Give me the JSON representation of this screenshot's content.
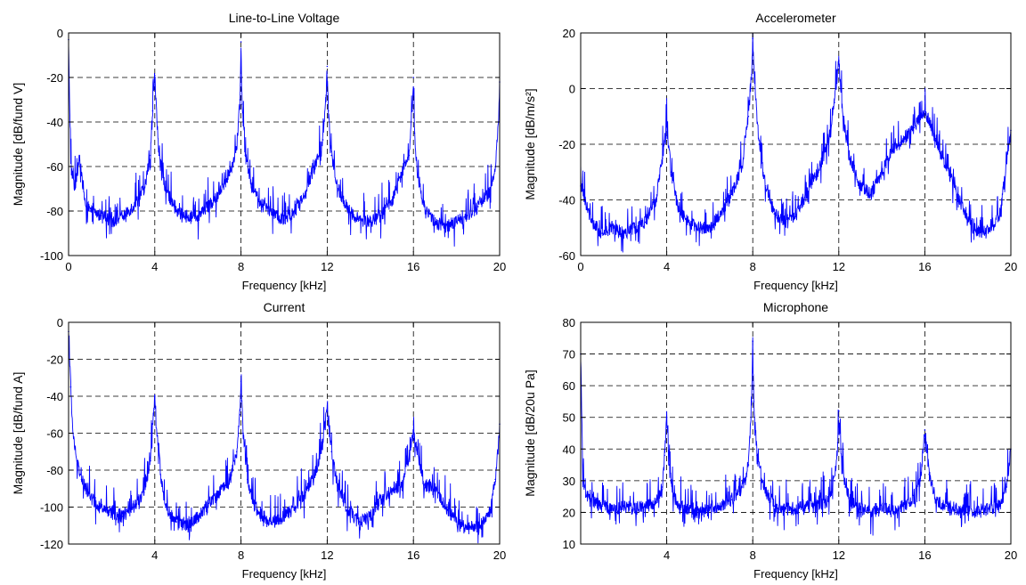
{
  "chart_data": [
    {
      "type": "line",
      "title": "Line-to-Line Voltage",
      "xlabel": "Frequency [kHz]",
      "ylabel": "Magnitude [dB/fund V]",
      "xlim": [
        0,
        20
      ],
      "ylim": [
        -100,
        0
      ],
      "xticks": [
        0,
        4,
        8,
        12,
        16,
        20
      ],
      "yticks": [
        -100,
        -80,
        -60,
        -40,
        -20,
        0
      ],
      "xtick_labels": [
        "0",
        "4",
        "8",
        "12",
        "16",
        "20"
      ],
      "ytick_labels": [
        "-100",
        "-80",
        "-60",
        "-40",
        "-20",
        "0"
      ],
      "grid": true,
      "line_color": "#0000ff",
      "series": [
        {
          "x": [
            0,
            0.1,
            0.3,
            0.5,
            0.75,
            1.0,
            1.5,
            2.0,
            2.5,
            3.0,
            3.5,
            3.8,
            3.9,
            4.0,
            4.1,
            4.2,
            4.5,
            5.0,
            5.5,
            6.0,
            6.5,
            7.0,
            7.5,
            7.8,
            7.95,
            8.0,
            8.05,
            8.2,
            8.5,
            9.0,
            9.5,
            10.0,
            10.5,
            11.0,
            11.5,
            11.8,
            11.95,
            12.0,
            12.05,
            12.2,
            12.5,
            13.0,
            13.5,
            14.0,
            14.5,
            15.0,
            15.5,
            15.8,
            15.95,
            16.0,
            16.05,
            16.2,
            16.5,
            17.0,
            17.5,
            18.0,
            18.5,
            19.0,
            19.5,
            19.8,
            19.95,
            20.0
          ],
          "y": [
            -3,
            -60,
            -70,
            -55,
            -75,
            -80,
            -82,
            -85,
            -82,
            -78,
            -70,
            -55,
            -35,
            -19,
            -40,
            -55,
            -70,
            -80,
            -83,
            -82,
            -78,
            -72,
            -62,
            -52,
            -30,
            -4,
            -32,
            -55,
            -68,
            -78,
            -82,
            -84,
            -80,
            -72,
            -58,
            -48,
            -28,
            -15,
            -35,
            -55,
            -70,
            -80,
            -84,
            -85,
            -82,
            -75,
            -62,
            -55,
            -35,
            -20,
            -45,
            -65,
            -78,
            -85,
            -87,
            -85,
            -82,
            -78,
            -72,
            -60,
            -40,
            -22
          ]
        }
      ]
    },
    {
      "type": "line",
      "title": "Accelerometer",
      "xlabel": "Frequency [kHz]",
      "ylabel": "Magnitude [dB/m/s²]",
      "xlim": [
        0,
        20
      ],
      "ylim": [
        -60,
        20
      ],
      "xticks": [
        0,
        4,
        8,
        12,
        16,
        20
      ],
      "yticks": [
        -60,
        -40,
        -20,
        0,
        20
      ],
      "xtick_labels": [
        "0",
        "4",
        "8",
        "12",
        "16",
        "20"
      ],
      "ytick_labels": [
        "-60",
        "-40",
        "-20",
        "0",
        "20"
      ],
      "grid": true,
      "line_color": "#0000ff",
      "series": [
        {
          "x": [
            0,
            0.2,
            0.5,
            1.0,
            1.5,
            2.0,
            2.5,
            3.0,
            3.5,
            3.8,
            4.0,
            4.2,
            4.5,
            5.0,
            5.5,
            6.0,
            6.5,
            7.0,
            7.5,
            7.8,
            7.95,
            8.0,
            8.1,
            8.3,
            8.6,
            9.0,
            9.5,
            10.0,
            10.5,
            11.0,
            11.5,
            11.8,
            12.0,
            12.2,
            12.5,
            13.0,
            13.5,
            14.0,
            14.5,
            15.0,
            15.5,
            15.8,
            16.0,
            16.5,
            17.0,
            17.5,
            18.0,
            18.5,
            19.0,
            19.5,
            20.0
          ],
          "y": [
            -35,
            -40,
            -48,
            -52,
            -50,
            -52,
            -50,
            -48,
            -40,
            -25,
            -12,
            -30,
            -42,
            -48,
            -50,
            -50,
            -45,
            -38,
            -28,
            -10,
            5,
            18,
            0,
            -20,
            -35,
            -45,
            -48,
            -45,
            -38,
            -30,
            -20,
            -5,
            10,
            -10,
            -25,
            -35,
            -38,
            -30,
            -22,
            -18,
            -14,
            -10,
            -8,
            -18,
            -28,
            -38,
            -48,
            -52,
            -50,
            -45,
            -15
          ]
        }
      ]
    },
    {
      "type": "line",
      "title": "Current",
      "xlabel": "Frequency [kHz]",
      "ylabel": "Magnitude [dB/fund A]",
      "xlim": [
        0,
        20
      ],
      "ylim": [
        -120,
        0
      ],
      "xticks": [
        4,
        8,
        12,
        16,
        20
      ],
      "yticks": [
        -120,
        -100,
        -80,
        -60,
        -40,
        -20,
        0
      ],
      "xtick_labels": [
        "4",
        "8",
        "12",
        "16",
        "20"
      ],
      "ytick_labels": [
        "-120",
        "-100",
        "-80",
        "-60",
        "-40",
        "-20",
        "0"
      ],
      "grid": true,
      "line_color": "#0000ff",
      "series": [
        {
          "x": [
            0,
            0.1,
            0.2,
            0.4,
            0.6,
            0.8,
            1.0,
            1.5,
            2.0,
            2.5,
            3.0,
            3.5,
            3.8,
            3.9,
            4.0,
            4.1,
            4.3,
            4.5,
            5.0,
            5.5,
            6.0,
            6.5,
            7.0,
            7.5,
            7.8,
            7.95,
            8.0,
            8.1,
            8.3,
            8.6,
            9.0,
            9.5,
            10.0,
            10.5,
            11.0,
            11.5,
            11.8,
            12.0,
            12.2,
            12.5,
            13.0,
            13.5,
            14.0,
            14.5,
            15.0,
            15.5,
            16.0,
            16.5,
            17.0,
            17.5,
            18.0,
            18.5,
            19.0,
            19.5,
            19.8,
            20.0
          ],
          "y": [
            -5,
            -35,
            -60,
            -75,
            -85,
            -90,
            -95,
            -100,
            -103,
            -105,
            -100,
            -92,
            -75,
            -55,
            -40,
            -60,
            -85,
            -100,
            -108,
            -110,
            -105,
            -98,
            -92,
            -85,
            -70,
            -50,
            -32,
            -60,
            -85,
            -98,
            -105,
            -108,
            -105,
            -100,
            -92,
            -80,
            -65,
            -48,
            -70,
            -90,
            -102,
            -108,
            -105,
            -96,
            -90,
            -88,
            -60,
            -88,
            -90,
            -100,
            -108,
            -112,
            -110,
            -105,
            -85,
            -55
          ]
        }
      ]
    },
    {
      "type": "line",
      "title": "Microphone",
      "xlabel": "Frequency [kHz]",
      "ylabel": "Magnitude [dB/20u Pa]",
      "xlim": [
        0,
        20
      ],
      "ylim": [
        10,
        80
      ],
      "xticks": [
        4,
        8,
        12,
        16,
        20
      ],
      "yticks": [
        10,
        20,
        30,
        40,
        50,
        60,
        70,
        80
      ],
      "xtick_labels": [
        "4",
        "8",
        "12",
        "16",
        "20"
      ],
      "ytick_labels": [
        "10",
        "20",
        "30",
        "40",
        "50",
        "60",
        "70",
        "80"
      ],
      "grid": true,
      "line_color": "#0000ff",
      "series": [
        {
          "x": [
            0,
            0.1,
            0.3,
            0.6,
            1.0,
            1.5,
            2.0,
            2.5,
            3.0,
            3.5,
            3.8,
            3.9,
            4.0,
            4.1,
            4.3,
            4.6,
            5.0,
            5.5,
            6.0,
            6.5,
            7.0,
            7.5,
            7.8,
            7.95,
            8.0,
            8.05,
            8.2,
            8.5,
            9.0,
            9.5,
            10.0,
            10.5,
            11.0,
            11.5,
            11.8,
            11.95,
            12.0,
            12.1,
            12.3,
            12.6,
            13.0,
            13.5,
            14.0,
            14.5,
            15.0,
            15.5,
            15.8,
            16.0,
            16.2,
            16.5,
            17.0,
            17.5,
            18.0,
            18.5,
            19.0,
            19.5,
            19.8,
            20.0
          ],
          "y": [
            70,
            30,
            25,
            23,
            22,
            21,
            22,
            21,
            22,
            23,
            28,
            38,
            50,
            35,
            25,
            22,
            21,
            20,
            21,
            22,
            24,
            28,
            35,
            55,
            74,
            55,
            38,
            28,
            22,
            21,
            21,
            22,
            22,
            24,
            30,
            42,
            52,
            40,
            28,
            23,
            21,
            20,
            21,
            21,
            22,
            24,
            30,
            46,
            32,
            24,
            22,
            21,
            21,
            20,
            21,
            22,
            28,
            40
          ]
        }
      ]
    }
  ]
}
